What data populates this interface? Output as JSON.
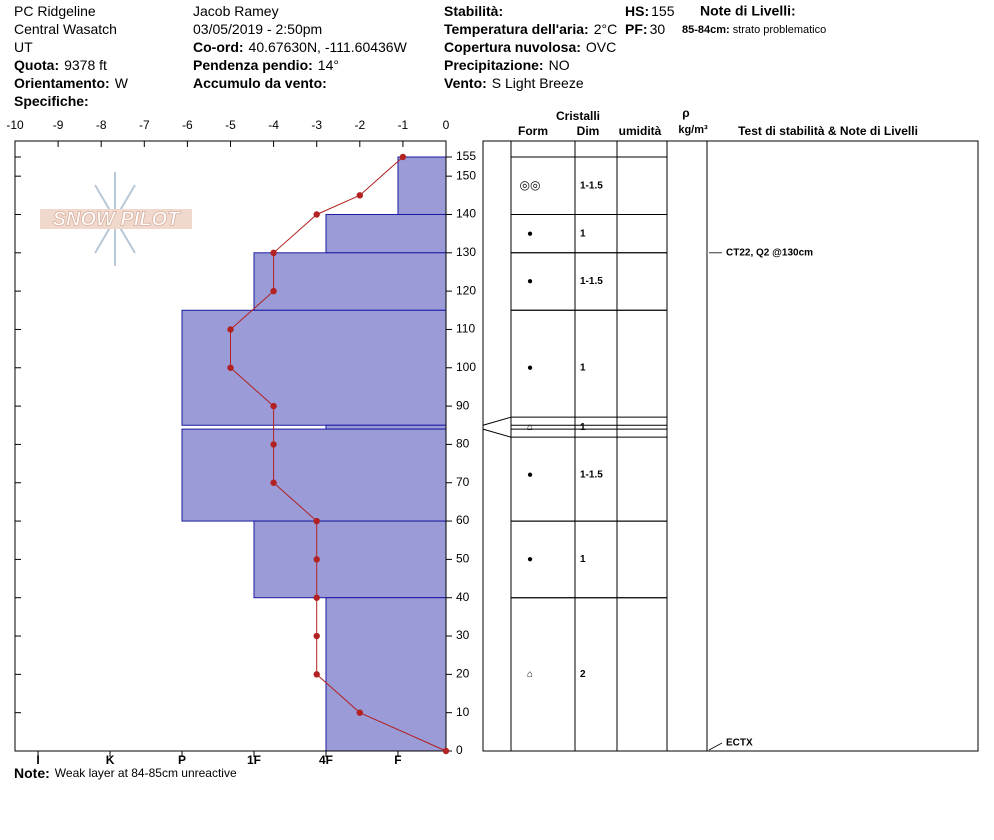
{
  "header": {
    "columns": [
      [
        {
          "value": "PC Ridgeline"
        },
        {
          "value": "Central Wasatch"
        },
        {
          "value": "UT"
        },
        {
          "label": "Quota:",
          "value": "9378 ft"
        },
        {
          "label": "Orientamento:",
          "value": "W"
        },
        {
          "label": "Specifiche:"
        }
      ],
      [
        {
          "value": "Jacob Ramey"
        },
        {
          "value": "03/05/2019 - 2:50pm"
        },
        {
          "label": "Co-ord:",
          "value": "40.67630N, -111.60436W"
        },
        {
          "label": "Pendenza pendio:",
          "value": "14°"
        },
        {
          "label": "Accumulo da vento:"
        }
      ],
      [
        {
          "label": "Stabilità:"
        },
        {
          "label": "Temperatura dell'aria:",
          "value": "2°C"
        },
        {
          "label": "Copertura nuvolosa:",
          "value": "OVC"
        },
        {
          "label": "Precipitazione:",
          "value": "NO"
        },
        {
          "label": "Vento:",
          "value": "S Light Breeze"
        }
      ],
      [
        {
          "label": "HS:",
          "value": "155"
        },
        {
          "label": "PF:",
          "value": "30"
        }
      ]
    ],
    "layer_notes": {
      "title": "Note di Livelli:",
      "items": [
        {
          "label": "85-84cm:",
          "value": "strato problematico"
        }
      ]
    }
  },
  "logo": "SNOW PILOT",
  "chart_data": {
    "type": "snow-profile",
    "xlim": [
      -10,
      0
    ],
    "xticks": [
      -10,
      -9,
      -8,
      -7,
      -6,
      -5,
      -4,
      -3,
      -2,
      -1,
      0
    ],
    "ylim": [
      0,
      155
    ],
    "yticks": [
      0,
      10,
      20,
      30,
      40,
      50,
      60,
      70,
      80,
      90,
      100,
      110,
      120,
      130,
      140,
      150,
      155
    ],
    "hardness_lim": [
      0.333,
      6.32
    ],
    "hardness_ticks": [
      {
        "value": 6,
        "label": "I"
      },
      {
        "value": 5,
        "label": "K"
      },
      {
        "value": 4,
        "label": "P"
      },
      {
        "value": 3,
        "label": "1F"
      },
      {
        "value": 2,
        "label": "4F"
      },
      {
        "value": 1,
        "label": "F"
      }
    ],
    "hardness_color": "#9b9bd8",
    "temperature": {
      "color": "#b22222",
      "heights": [
        155,
        145,
        140,
        130,
        120,
        110,
        100,
        90,
        80,
        70,
        60,
        50,
        40,
        30,
        20,
        10,
        0
      ],
      "values": [
        -1,
        -2,
        -3,
        -4,
        -4,
        -5,
        -5,
        -4,
        -4,
        -4,
        -3,
        -3,
        -3,
        -3,
        -3,
        -2,
        0
      ]
    },
    "layers": [
      {
        "top": 155,
        "bottom": 140,
        "hardness": 1,
        "form": "◎◎",
        "size": "1-1.5"
      },
      {
        "top": 140,
        "bottom": 130,
        "hardness": 2,
        "form": "●",
        "size": "1"
      },
      {
        "top": 130,
        "bottom": 115,
        "hardness": 3,
        "form": "●",
        "size": "1-1.5"
      },
      {
        "top": 115,
        "bottom": 85,
        "hardness": 4,
        "form": "●",
        "size": "1"
      },
      {
        "top": 85,
        "bottom": 84,
        "hardness": 2,
        "form": "⌂",
        "size": "1"
      },
      {
        "top": 84,
        "bottom": 60,
        "hardness": 4,
        "form": "●",
        "size": "1-1.5"
      },
      {
        "top": 60,
        "bottom": 40,
        "hardness": 3,
        "form": "●",
        "size": "1"
      },
      {
        "top": 40,
        "bottom": 0,
        "hardness": 2,
        "form": "⌂",
        "size": "2"
      }
    ],
    "table_headers": {
      "crystals": "Cristalli",
      "form": "Form",
      "size": "Dim",
      "moisture": "umidità",
      "density_symbol": "ρ",
      "density_unit": "kg/m³",
      "tests": "Test di stabilità & Note di Livelli"
    },
    "tests": [
      {
        "text": "CT22, Q2 @130cm",
        "height": 130
      },
      {
        "text": "ECTX",
        "height": 0
      }
    ]
  },
  "note": {
    "label": "Note:",
    "value": "Weak layer at 84-85cm unreactive"
  }
}
